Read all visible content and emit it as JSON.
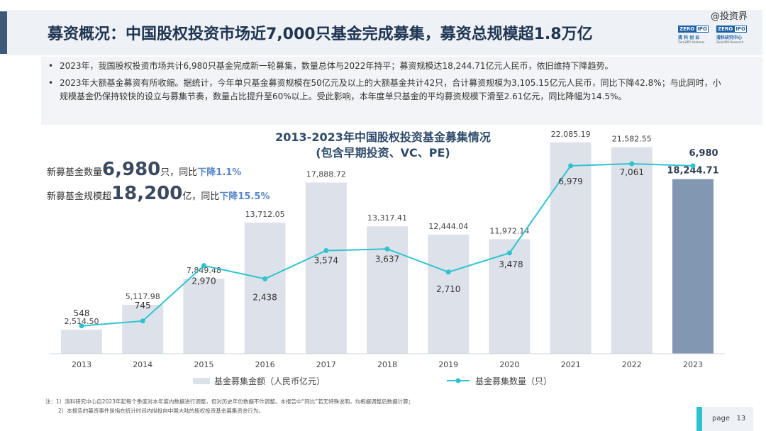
{
  "watermark": "@投资界",
  "header": {
    "title": "募资概况：中国股权投资市场近7,000只基金完成募集，募资总规模超1.8万亿",
    "logos": [
      {
        "badge_left": "ZERO",
        "badge_right": "IPO",
        "cn": "清 科 创 业",
        "en": "Zero2IPO Ventures"
      },
      {
        "badge_left": "ZERO",
        "badge_right": "IPO",
        "cn": "清科研究中心",
        "en": "Zero2IPO Research"
      }
    ]
  },
  "summary": {
    "bullet_symbol": "•",
    "bullets": [
      "2023年，我国股权投资市场共计6,980只基金完成新一轮募集，数量总体与2022年持平；募资规模达18,244.71亿元人民币，依旧维持下降趋势。",
      "2023年大额基金募资有所收缩。据统计，今年单只基金募资规模在50亿元及以上的大额基金共计42只，合计募资规模为3,105.15亿元人民币，同比下降42.8%；与此同时，小规模基金仍保持较快的设立与募集节奏，数量占比提升至60%以上。受此影响，本年度单只基金的平均募资规模下滑至2.61亿元，同比降幅为14.5%。"
    ]
  },
  "kpis": {
    "count": {
      "prefix": "新募基金数量",
      "value": "6,980",
      "unit": "只，同比",
      "change": "下降1.1%"
    },
    "scale": {
      "prefix": "新募基金规模超",
      "value": "18,200",
      "unit": "亿，同比",
      "change": "下降15.5%"
    }
  },
  "chart_data": {
    "type": "bar+line",
    "title": "2013-2023年中国股权投资基金募集情况",
    "subtitle": "(包含早期投资、VC、PE)",
    "categories": [
      "2013",
      "2014",
      "2015",
      "2016",
      "2017",
      "2018",
      "2019",
      "2020",
      "2021",
      "2022",
      "2023"
    ],
    "bar_series": {
      "name": "基金募集金额（人民币亿元）",
      "values": [
        2514.5,
        5117.98,
        7849.48,
        13712.05,
        17888.72,
        13317.41,
        12444.04,
        11972.14,
        22085.19,
        21582.55,
        18244.71
      ],
      "labels": [
        "2,514.50",
        "5,117.98",
        "7,849.48",
        "13,712.05",
        "17,888.72",
        "13,317.41",
        "12,444.04",
        "11,972.14",
        "22,085.19",
        "21,582.55",
        "18,244.71"
      ],
      "color": "#dde2ea",
      "highlight_color": "#8197b2"
    },
    "line_series": {
      "name": "基金募集数量（只）",
      "values": [
        548,
        745,
        2970,
        2438,
        3574,
        3637,
        2710,
        3478,
        6979,
        7061,
        6980
      ],
      "labels": [
        "548",
        "745",
        "2,970",
        "2,438",
        "3,574",
        "3,637",
        "2,710",
        "3,478",
        "6,979",
        "7,061",
        "6,980"
      ],
      "color": "#2fc3cf"
    },
    "bar_ylim": [
      0,
      24000
    ],
    "line_ylim": [
      0,
      8000
    ],
    "legend_position": "bottom"
  },
  "notes": [
    "注：1）清科研究中心自2023年起每个季度对本年度内数据进行调整，但对历史年份数据不作调整。本报告中“同比”若无特殊说明，均根据调整后数据计算；",
    "2）本报告的募资事件是指在统计时间内拟投向中国大陆的股权投资基金募集资金行为。"
  ],
  "page": {
    "label": "page",
    "number": "13"
  }
}
